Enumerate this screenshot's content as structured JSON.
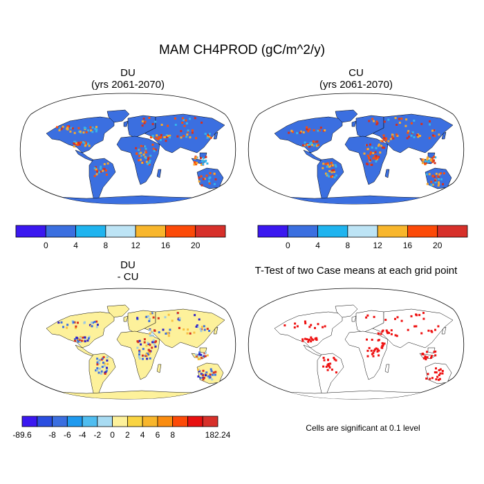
{
  "title": "MAM CH4PROD (gC/m^2/y)",
  "panels": [
    {
      "id": "du",
      "title_line1": "DU",
      "title_line2": "(yrs 2061-2070)",
      "fill": "#3b6fe0",
      "hot": [
        "#d7301f",
        "#fc4e0a",
        "#f8a92c",
        "#34b4ea"
      ]
    },
    {
      "id": "cu",
      "title_line1": "CU",
      "title_line2": "(yrs 2061-2070)",
      "fill": "#3b6fe0",
      "hot": [
        "#d7301f",
        "#fc4e0a",
        "#f8a92c",
        "#34b4ea"
      ]
    },
    {
      "id": "diff",
      "title_line1": "DU",
      "title_line2": "- CU",
      "fill": "#fdf19b",
      "hot": [
        "#9ecae1",
        "#3b6fe0",
        "#2e20c7",
        "#f8c040",
        "#d7301f"
      ]
    },
    {
      "id": "ttest",
      "title_line1": "T-Test of two Case means at each grid point",
      "title_line2": "",
      "fill": "#ffffff",
      "hot": [
        "#ee1111"
      ]
    }
  ],
  "colorbar_top": {
    "colors": [
      "#3b18f0",
      "#3b6fe0",
      "#1fb4ef",
      "#bde4f5",
      "#f8b62c",
      "#fc4a08",
      "#d7302a"
    ],
    "labels": [
      "0",
      "4",
      "8",
      "12",
      "16",
      "20"
    ]
  },
  "colorbar_diff": {
    "colors": [
      "#3b18f0",
      "#2a4ee0",
      "#3b6fe0",
      "#1f9aef",
      "#4fbdf0",
      "#a8dbf2",
      "#fdf19b",
      "#f9d442",
      "#f8b62c",
      "#fa8c10",
      "#fc4a08",
      "#e81010",
      "#d7302a"
    ],
    "labels": [
      "-89.6",
      "-8",
      "-6",
      "-4",
      "-2",
      "0",
      "2",
      "4",
      "6",
      "8",
      "182.24"
    ]
  },
  "significance_note": "Cells are significant at 0.1 level"
}
